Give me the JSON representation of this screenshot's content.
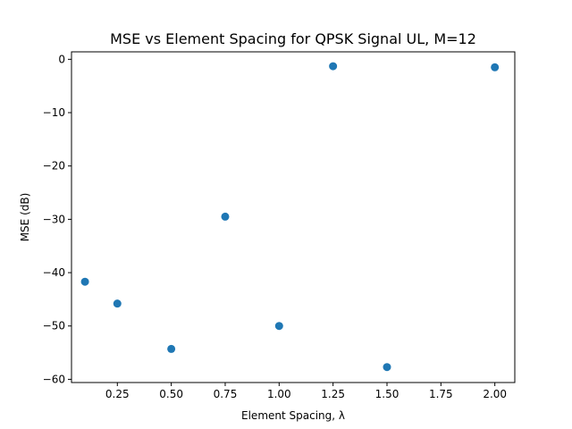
{
  "chart_data": {
    "type": "scatter",
    "title": "MSE vs Element Spacing for QPSK Signal UL, M=12",
    "xlabel": "Element Spacing, λ",
    "ylabel": "MSE (dB)",
    "xlim": [
      0.0375,
      2.0925
    ],
    "ylim": [
      -60.6,
      1.4
    ],
    "x_ticks": [
      0.25,
      0.5,
      0.75,
      1.0,
      1.25,
      1.5,
      1.75,
      2.0
    ],
    "x_tick_labels": [
      "0.25",
      "0.50",
      "0.75",
      "1.00",
      "1.25",
      "1.50",
      "1.75",
      "2.00"
    ],
    "y_ticks": [
      0,
      -10,
      -20,
      -30,
      -40,
      -50,
      -60
    ],
    "y_tick_labels": [
      "0",
      "−10",
      "−20",
      "−30",
      "−40",
      "−50",
      "−60"
    ],
    "grid": false,
    "color": "#1f77b4",
    "series": [
      {
        "x": [
          0.1,
          0.25,
          0.5,
          0.75,
          1.0,
          1.25,
          1.5,
          2.0
        ],
        "y": [
          -41.7,
          -45.8,
          -54.3,
          -29.5,
          -50.0,
          -1.3,
          -57.7,
          -1.5
        ]
      }
    ]
  }
}
